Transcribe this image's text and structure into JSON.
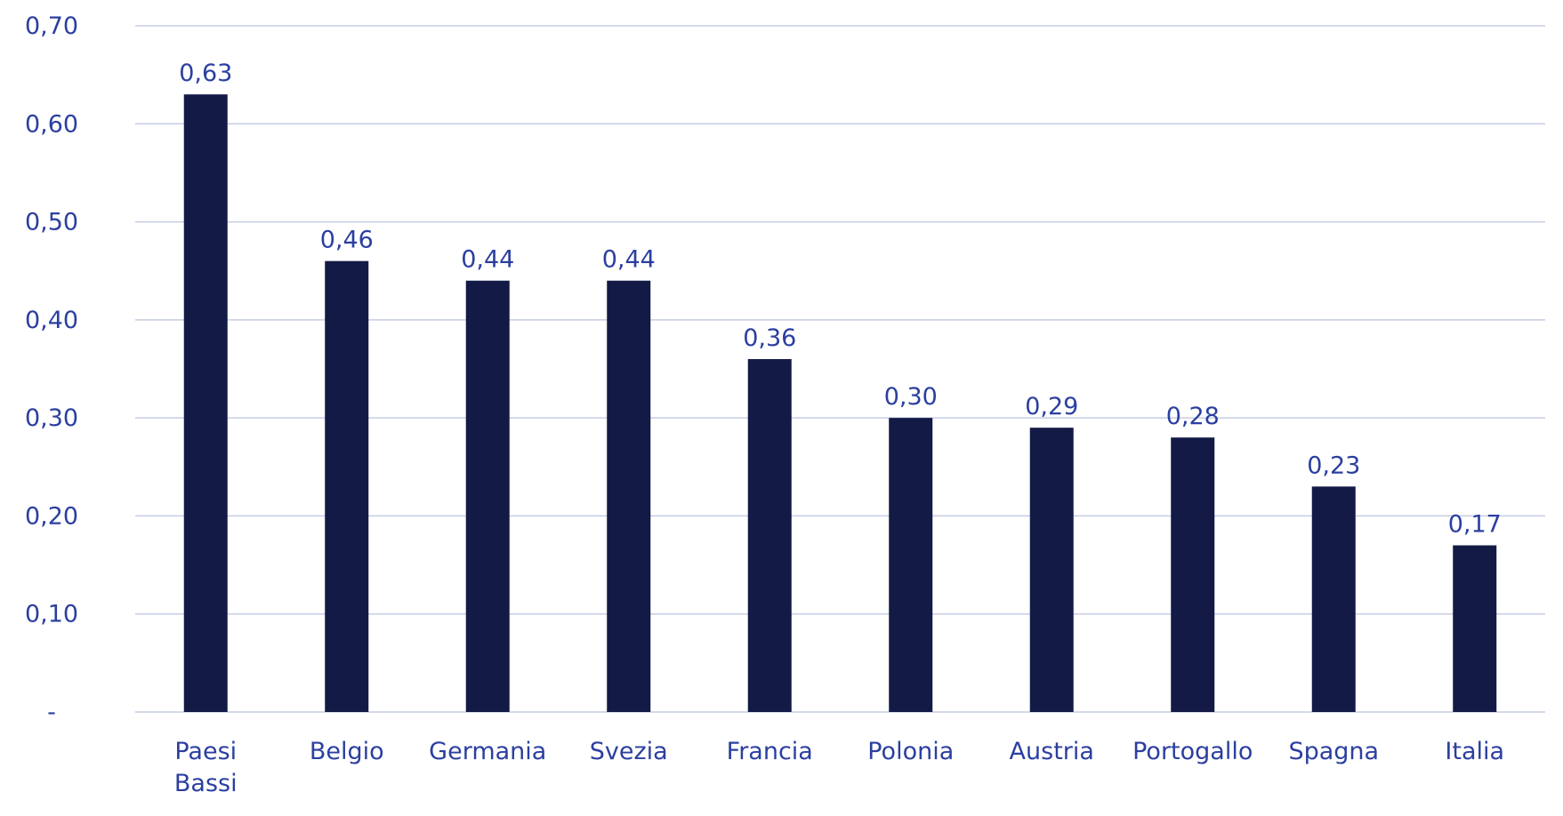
{
  "chart_data": {
    "type": "bar",
    "categories": [
      "Paesi Bassi",
      "Belgio",
      "Germania",
      "Svezia",
      "Francia",
      "Polonia",
      "Austria",
      "Portogallo",
      "Spagna",
      "Italia"
    ],
    "values": [
      0.63,
      0.46,
      0.44,
      0.44,
      0.36,
      0.3,
      0.29,
      0.28,
      0.23,
      0.17
    ],
    "value_labels": [
      "0,63",
      "0,46",
      "0,44",
      "0,44",
      "0,36",
      "0,30",
      "0,29",
      "0,28",
      "0,23",
      "0,17"
    ],
    "y_ticks": [
      0,
      0.1,
      0.2,
      0.3,
      0.4,
      0.5,
      0.6,
      0.7
    ],
    "y_tick_labels": [
      "-",
      "0,10",
      "0,20",
      "0,30",
      "0,40",
      "0,50",
      "0,60",
      "0,70"
    ],
    "ylim": [
      0,
      0.7
    ],
    "grid": true,
    "legend": false,
    "colors": {
      "bar": "#121a45",
      "text": "#2b3fa0",
      "grid": "#c7cde3"
    }
  }
}
